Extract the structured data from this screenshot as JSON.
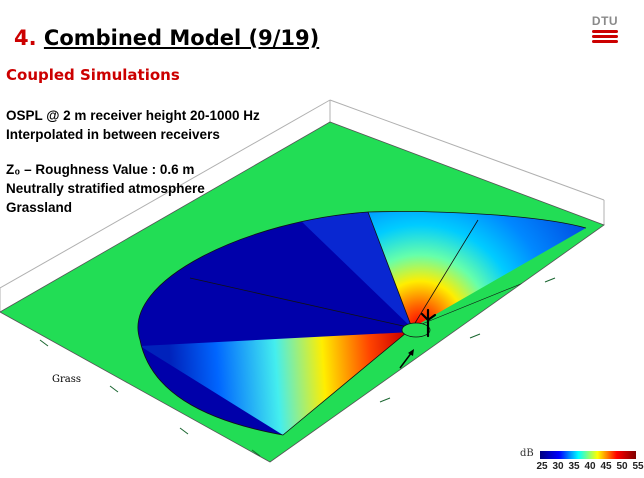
{
  "header": {
    "number": "4.",
    "title": "Combined Model (9/19)",
    "subtitle": "Coupled Simulations"
  },
  "info": {
    "line1": "OSPL @ 2 m receiver height 20-1000 Hz",
    "line2": "Interpolated in between receivers",
    "line3": "Z₀ – Roughness Value : 0.6 m",
    "line4": "Neutrally stratified atmosphere",
    "line5": "Grassland"
  },
  "logo": {
    "text": "DTU",
    "bar_color": "#cc0000"
  },
  "figure": {
    "terrain_label": "Grass",
    "terrain_color": "#22dd55",
    "colorbar": {
      "unit": "dB",
      "ticks": [
        "25",
        "30",
        "35",
        "40",
        "45",
        "50",
        "55"
      ],
      "colormap": "jet"
    }
  }
}
